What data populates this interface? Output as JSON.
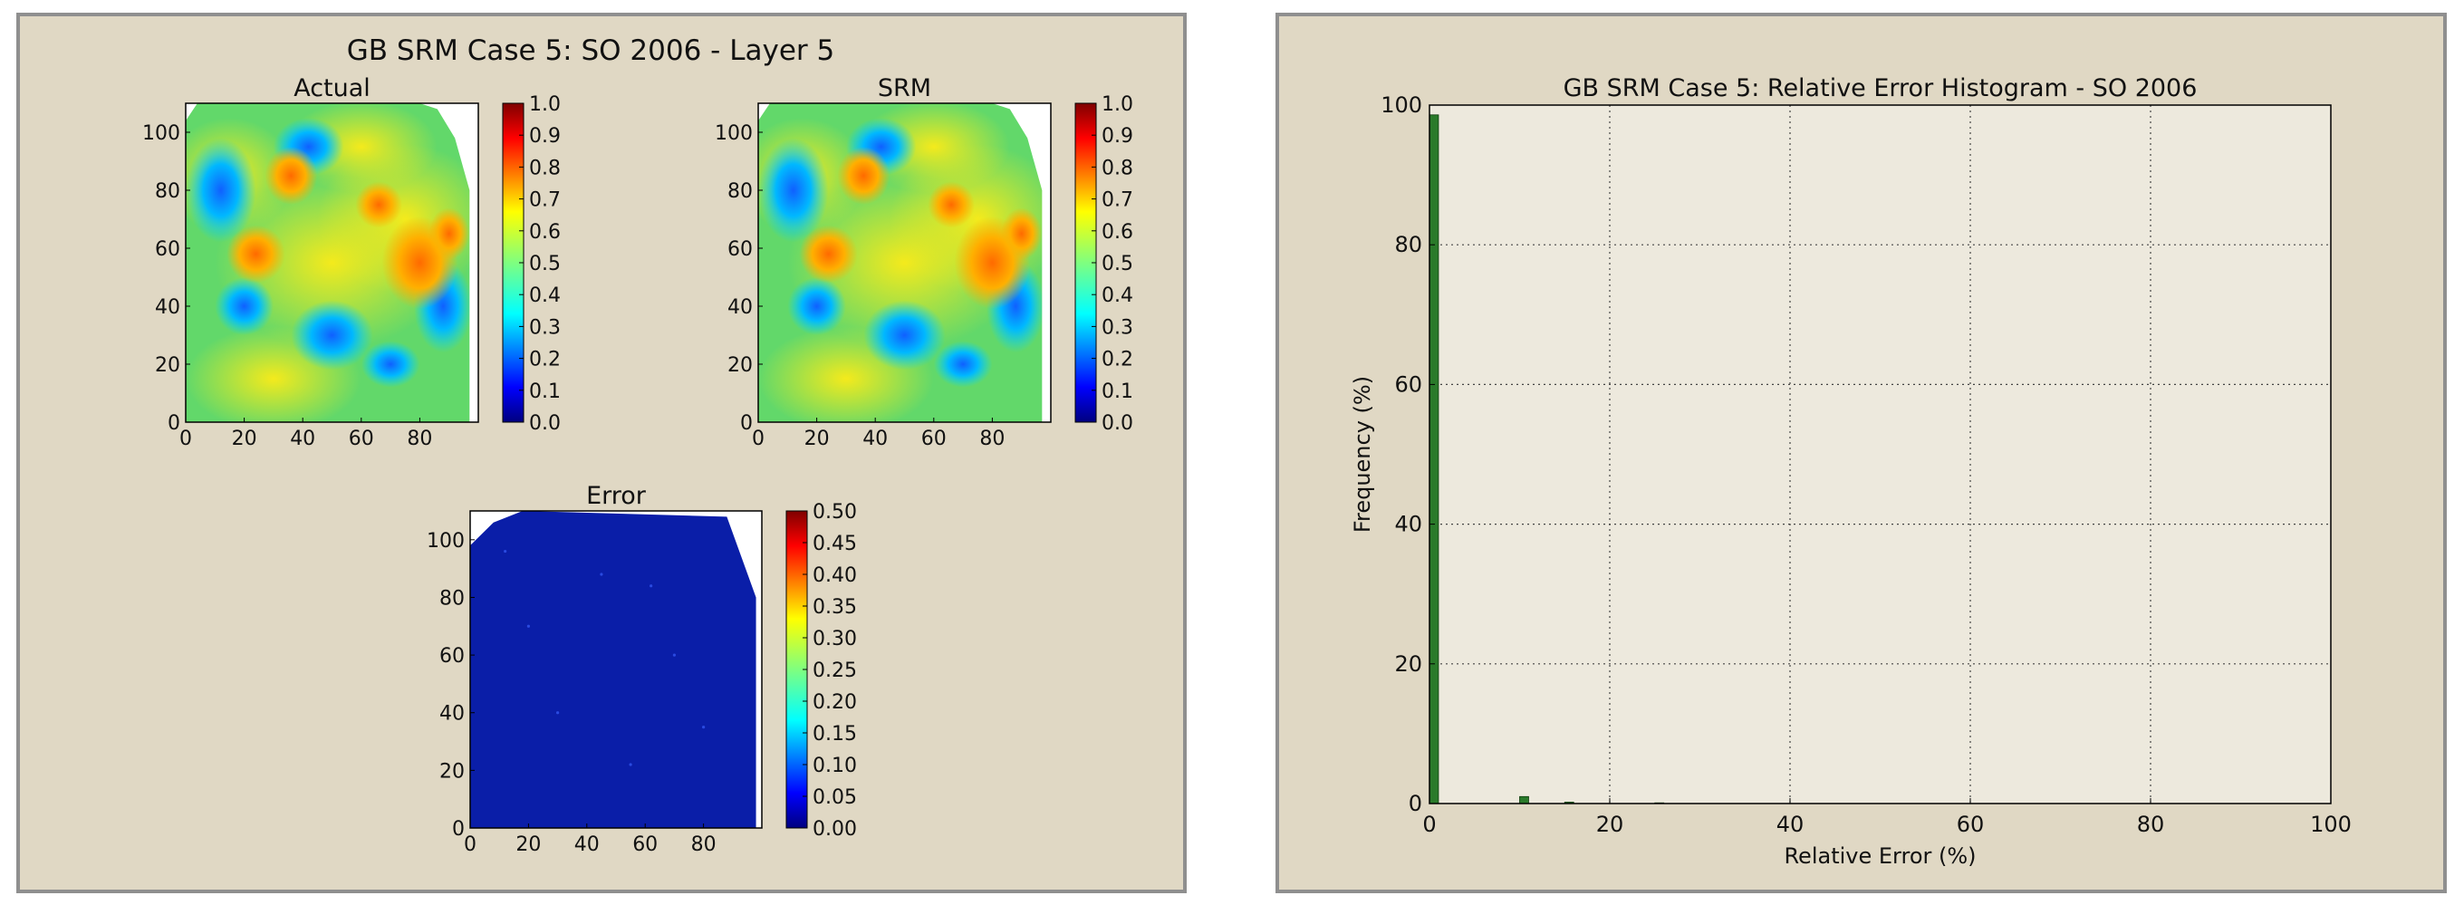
{
  "left_panel": {
    "suptitle": "GB SRM Case 5: SO 2006  - Layer 5",
    "maps": [
      {
        "title": "Actual",
        "colorbar_ticks": [
          "1.0",
          "0.9",
          "0.8",
          "0.7",
          "0.6",
          "0.5",
          "0.4",
          "0.3",
          "0.2",
          "0.1",
          "0.0"
        ]
      },
      {
        "title": "SRM",
        "colorbar_ticks": [
          "1.0",
          "0.9",
          "0.8",
          "0.7",
          "0.6",
          "0.5",
          "0.4",
          "0.3",
          "0.2",
          "0.1",
          "0.0"
        ]
      },
      {
        "title": "Error",
        "colorbar_ticks": [
          "0.50",
          "0.45",
          "0.40",
          "0.35",
          "0.30",
          "0.25",
          "0.20",
          "0.15",
          "0.10",
          "0.05",
          "0.00"
        ]
      }
    ],
    "x_ticks": [
      "0",
      "20",
      "40",
      "60",
      "80"
    ],
    "y_ticks": [
      "100",
      "80",
      "60",
      "40",
      "20",
      "0"
    ]
  },
  "colors": {
    "panel_bg": "#e0d8c4",
    "plot_bg": "#ede9dd",
    "bar": "#2a7a2a",
    "error_blue": "#0a1ea8",
    "jet": [
      "#00007f",
      "#0000ff",
      "#007fff",
      "#00ffff",
      "#7fff7f",
      "#ffff00",
      "#ff7f00",
      "#ff0000",
      "#7f0000"
    ]
  },
  "chart_data": [
    {
      "type": "heatmap",
      "title": "Actual",
      "xlim": [
        0,
        100
      ],
      "ylim": [
        0,
        110
      ],
      "x_ticks": [
        0,
        20,
        40,
        60,
        80
      ],
      "y_ticks": [
        0,
        20,
        40,
        60,
        80,
        100
      ],
      "colorbar": {
        "min": 0.0,
        "max": 1.0,
        "colormap": "jet",
        "ticks": [
          0.0,
          0.1,
          0.2,
          0.3,
          0.4,
          0.5,
          0.6,
          0.7,
          0.8,
          0.9,
          1.0
        ]
      }
    },
    {
      "type": "heatmap",
      "title": "SRM",
      "xlim": [
        0,
        100
      ],
      "ylim": [
        0,
        110
      ],
      "x_ticks": [
        0,
        20,
        40,
        60,
        80
      ],
      "y_ticks": [
        0,
        20,
        40,
        60,
        80,
        100
      ],
      "colorbar": {
        "min": 0.0,
        "max": 1.0,
        "colormap": "jet",
        "ticks": [
          0.0,
          0.1,
          0.2,
          0.3,
          0.4,
          0.5,
          0.6,
          0.7,
          0.8,
          0.9,
          1.0
        ]
      }
    },
    {
      "type": "heatmap",
      "title": "Error",
      "xlim": [
        0,
        100
      ],
      "ylim": [
        0,
        110
      ],
      "x_ticks": [
        0,
        20,
        40,
        60,
        80
      ],
      "y_ticks": [
        0,
        20,
        40,
        60,
        80,
        100
      ],
      "colorbar": {
        "min": 0.0,
        "max": 0.5,
        "colormap": "jet",
        "ticks": [
          0.0,
          0.05,
          0.1,
          0.15,
          0.2,
          0.25,
          0.3,
          0.35,
          0.4,
          0.45,
          0.5
        ]
      }
    },
    {
      "type": "bar",
      "title": "GB SRM Case 5: Relative Error Histogram - SO 2006",
      "xlabel": "Relative Error (%)",
      "ylabel": "Frequency (%)",
      "xlim": [
        0,
        100
      ],
      "ylim": [
        0,
        100
      ],
      "x_ticks": [
        0,
        20,
        40,
        60,
        80,
        100
      ],
      "y_ticks": [
        0,
        20,
        40,
        60,
        80,
        100
      ],
      "grid": true,
      "bin_width": 0.5,
      "bins": [
        {
          "x": 0,
          "y": 98.6
        },
        {
          "x": 10,
          "y": 1.0
        },
        {
          "x": 15,
          "y": 0.2
        },
        {
          "x": 25,
          "y": 0.1
        }
      ]
    }
  ]
}
